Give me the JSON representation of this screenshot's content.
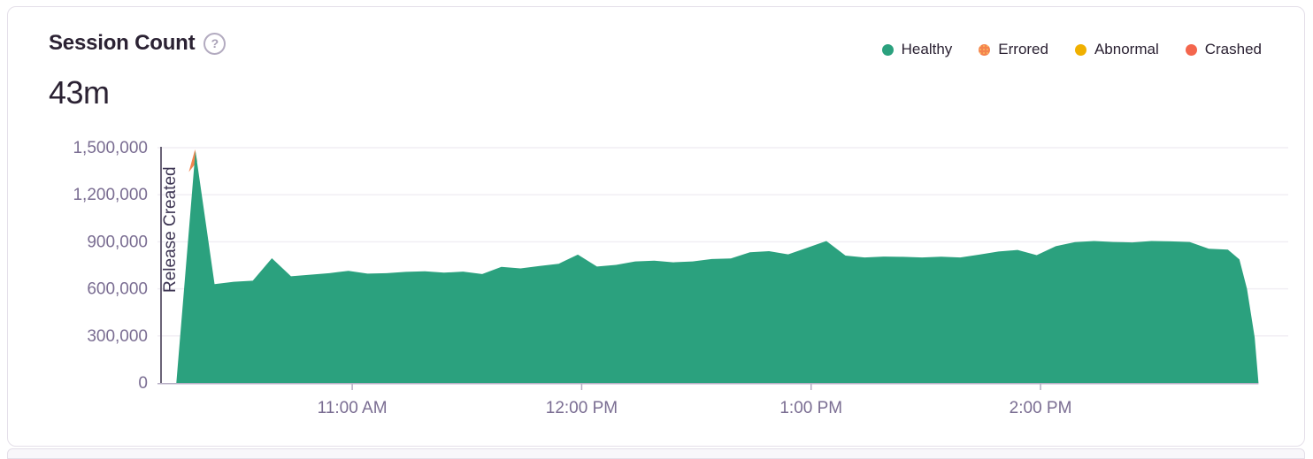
{
  "card": {
    "title": "Session Count",
    "help_icon": "?",
    "total": "43m"
  },
  "chart_data": {
    "type": "area",
    "title": "Session Count",
    "total_label": "43m",
    "xlabel": "",
    "ylabel": "",
    "grid": true,
    "legend_position": "top-right",
    "legend": [
      {
        "label": "Healthy",
        "color": "#2ba17e",
        "pattern": "solid"
      },
      {
        "label": "Errored",
        "color": "#f4834f",
        "pattern": "dotted",
        "dot_color": "#fdc65f"
      },
      {
        "label": "Abnormal",
        "color": "#f0b000",
        "pattern": "solid"
      },
      {
        "label": "Crashed",
        "color": "#f4664d",
        "pattern": "solid"
      }
    ],
    "x_axis": {
      "ticks": [
        "11:00 AM",
        "12:00 PM",
        "1:00 PM",
        "2:00 PM"
      ],
      "range": [
        "10:10 AM",
        "2:57 PM"
      ]
    },
    "y_axis": {
      "ticks": [
        "0",
        "300,000",
        "600,000",
        "900,000",
        "1,200,000",
        "1,500,000"
      ],
      "max": 1500000,
      "range": [
        0,
        1500000
      ]
    },
    "release_annotation": {
      "label": "Release Created",
      "time": "10:10 AM"
    },
    "peak_accent_color": "#f4854e",
    "series": [
      {
        "name": "Healthy",
        "color": "#2ba17e",
        "points": [
          [
            "10:14 AM",
            0
          ],
          [
            "10:19 AM",
            1480000
          ],
          [
            "10:24 AM",
            630000
          ],
          [
            "10:29 AM",
            645000
          ],
          [
            "10:34 AM",
            652000
          ],
          [
            "10:39 AM",
            795000
          ],
          [
            "10:44 AM",
            680000
          ],
          [
            "10:49 AM",
            690000
          ],
          [
            "10:54 AM",
            700000
          ],
          [
            "10:59 AM",
            715000
          ],
          [
            "11:04 AM",
            697000
          ],
          [
            "11:09 AM",
            700000
          ],
          [
            "11:14 AM",
            708000
          ],
          [
            "11:19 AM",
            712000
          ],
          [
            "11:24 AM",
            703000
          ],
          [
            "11:29 AM",
            710000
          ],
          [
            "11:34 AM",
            694000
          ],
          [
            "11:39 AM",
            740000
          ],
          [
            "11:44 AM",
            730000
          ],
          [
            "11:49 AM",
            746000
          ],
          [
            "11:54 AM",
            760000
          ],
          [
            "11:59 AM",
            818000
          ],
          [
            "12:04 PM",
            742000
          ],
          [
            "12:09 PM",
            753000
          ],
          [
            "12:14 PM",
            775000
          ],
          [
            "12:19 PM",
            780000
          ],
          [
            "12:24 PM",
            769000
          ],
          [
            "12:29 PM",
            775000
          ],
          [
            "12:34 PM",
            790000
          ],
          [
            "12:39 PM",
            794000
          ],
          [
            "12:44 PM",
            833000
          ],
          [
            "12:49 PM",
            840000
          ],
          [
            "12:54 PM",
            820000
          ],
          [
            "12:59 PM",
            862000
          ],
          [
            "1:04 PM",
            905000
          ],
          [
            "1:09 PM",
            812000
          ],
          [
            "1:14 PM",
            800000
          ],
          [
            "1:19 PM",
            806000
          ],
          [
            "1:24 PM",
            804000
          ],
          [
            "1:29 PM",
            800000
          ],
          [
            "1:34 PM",
            805000
          ],
          [
            "1:39 PM",
            800000
          ],
          [
            "1:44 PM",
            818000
          ],
          [
            "1:49 PM",
            838000
          ],
          [
            "1:54 PM",
            848000
          ],
          [
            "1:59 PM",
            815000
          ],
          [
            "2:04 PM",
            872000
          ],
          [
            "2:09 PM",
            898000
          ],
          [
            "2:14 PM",
            905000
          ],
          [
            "2:19 PM",
            899000
          ],
          [
            "2:24 PM",
            896000
          ],
          [
            "2:29 PM",
            905000
          ],
          [
            "2:34 PM",
            903000
          ],
          [
            "2:39 PM",
            899000
          ],
          [
            "2:44 PM",
            856000
          ],
          [
            "2:49 PM",
            850000
          ],
          [
            "2:52 PM",
            788000
          ],
          [
            "2:54 PM",
            600000
          ],
          [
            "2:56 PM",
            290000
          ],
          [
            "2:57 PM",
            0
          ]
        ]
      }
    ]
  }
}
